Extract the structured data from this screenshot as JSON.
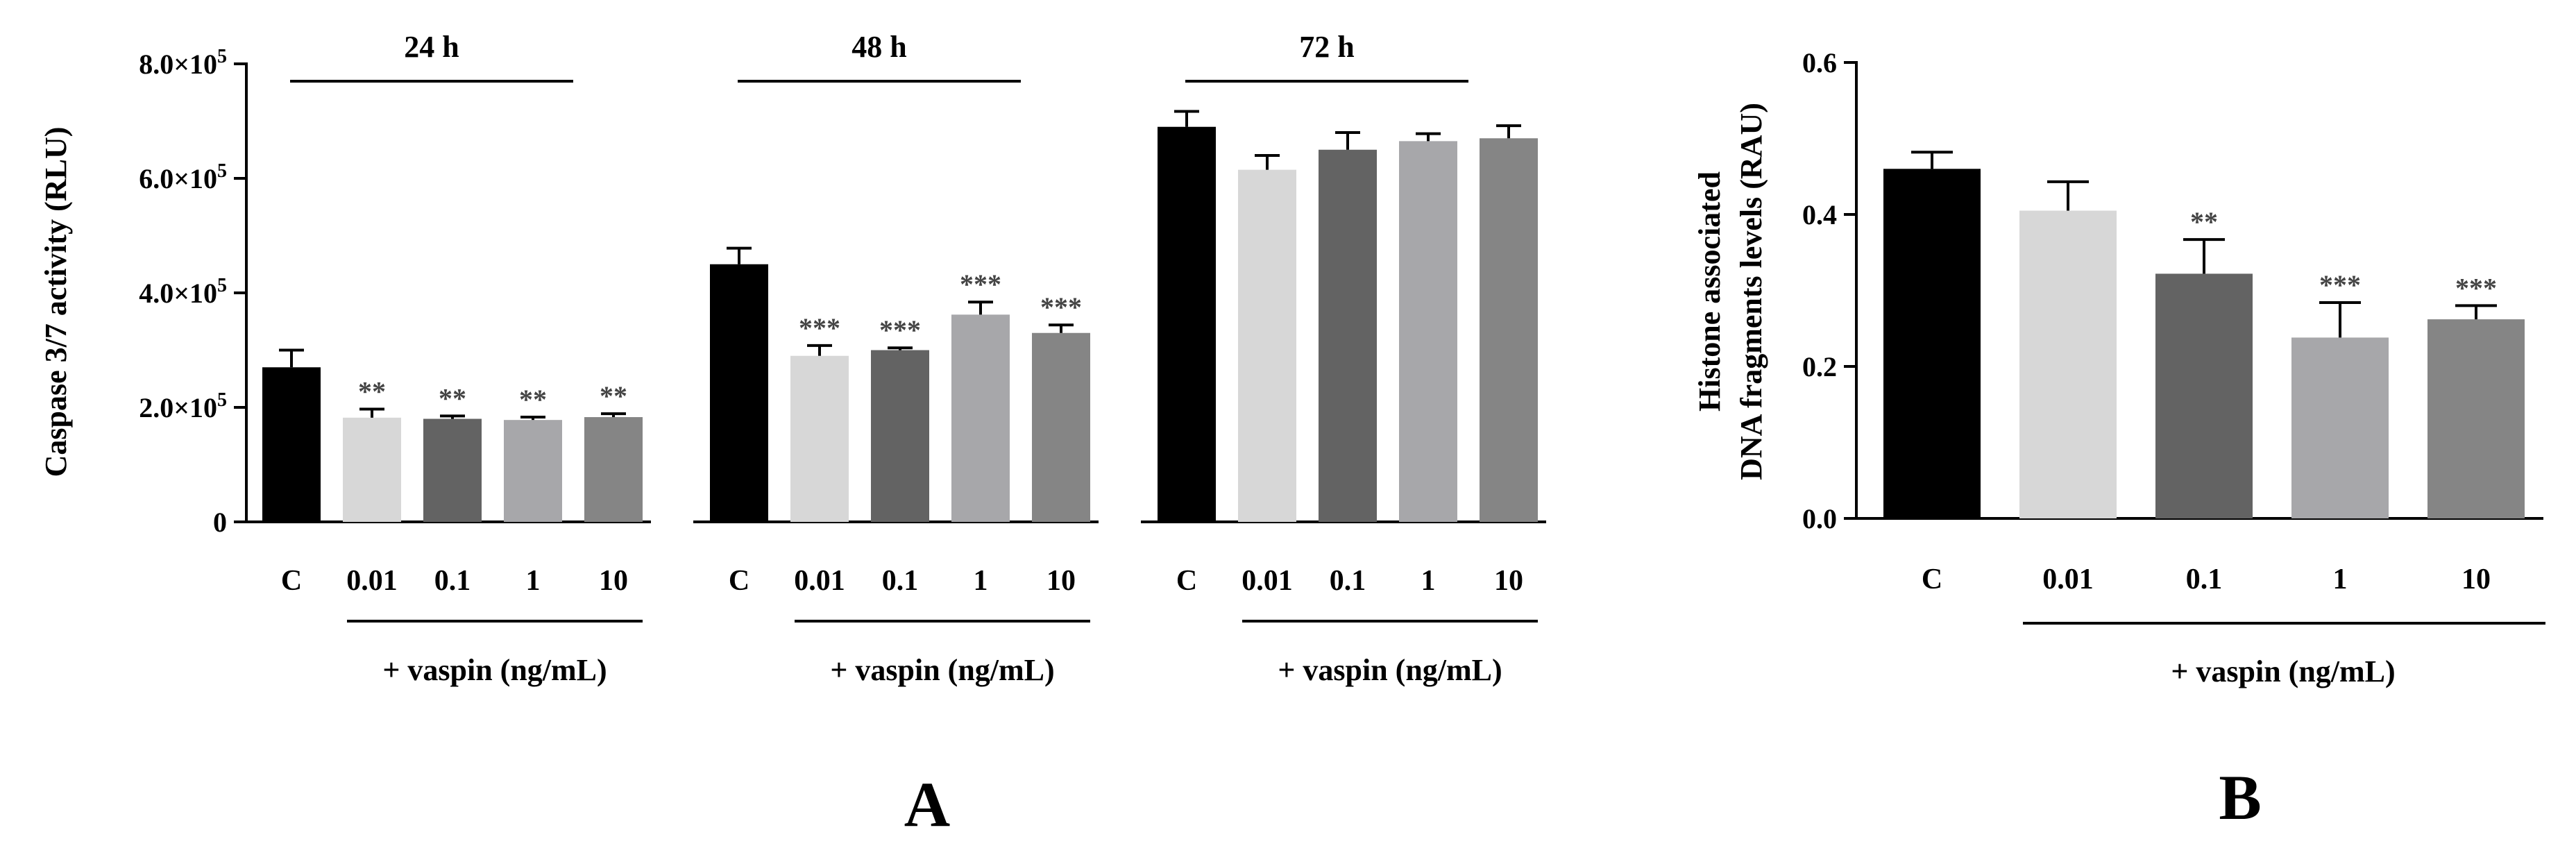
{
  "figure": {
    "panel_a_label": "A",
    "panel_b_label": "B",
    "treatment_label": "+ vaspin (ng/mL)",
    "scale_unit": "×10",
    "scale_exp": "5"
  },
  "colors": {
    "C": "#000000",
    "0.01": "#d7d7d7",
    "0.1": "#636363",
    "1": "#a7a7aa",
    "10": "#858585"
  },
  "chart_data": [
    {
      "id": "A",
      "type": "bar",
      "ylabel": "Caspase 3/7 activity (RLU)",
      "ylim": [
        0,
        800000
      ],
      "yticks": [
        0,
        200000,
        400000,
        600000,
        800000
      ],
      "ytick_labels": [
        "0",
        "2.0",
        "4.0",
        "6.0",
        "8.0"
      ],
      "categories": [
        "C",
        "0.01",
        "0.1",
        "1",
        "10"
      ],
      "groups": [
        {
          "name": "24 h",
          "values": [
            270000,
            182000,
            180000,
            178000,
            183000
          ],
          "errors": [
            30000,
            15000,
            5000,
            5000,
            6000
          ],
          "sig": [
            "",
            "**",
            "**",
            "**",
            "**"
          ]
        },
        {
          "name": "48 h",
          "values": [
            450000,
            290000,
            300000,
            362000,
            330000
          ],
          "errors": [
            28000,
            18000,
            4000,
            22000,
            14000
          ],
          "sig": [
            "",
            "***",
            "***",
            "***",
            "***"
          ]
        },
        {
          "name": "72 h",
          "values": [
            690000,
            615000,
            650000,
            665000,
            670000
          ],
          "errors": [
            27000,
            25000,
            30000,
            13000,
            22000
          ],
          "sig": [
            "",
            "",
            "",
            "",
            ""
          ]
        }
      ]
    },
    {
      "id": "B",
      "type": "bar",
      "ylabel_line1": "Histone associated",
      "ylabel_line2": "DNA fragments levels (RAU)",
      "ylim": [
        0,
        0.6
      ],
      "yticks": [
        0,
        0.2,
        0.4,
        0.6
      ],
      "ytick_labels": [
        "0.0",
        "0.2",
        "0.4",
        "0.6"
      ],
      "categories": [
        "C",
        "0.01",
        "0.1",
        "1",
        "10"
      ],
      "values": [
        0.46,
        0.405,
        0.322,
        0.238,
        0.262
      ],
      "errors": [
        0.022,
        0.038,
        0.045,
        0.046,
        0.018
      ],
      "sig": [
        "",
        "",
        "**",
        "***",
        "***"
      ]
    }
  ]
}
